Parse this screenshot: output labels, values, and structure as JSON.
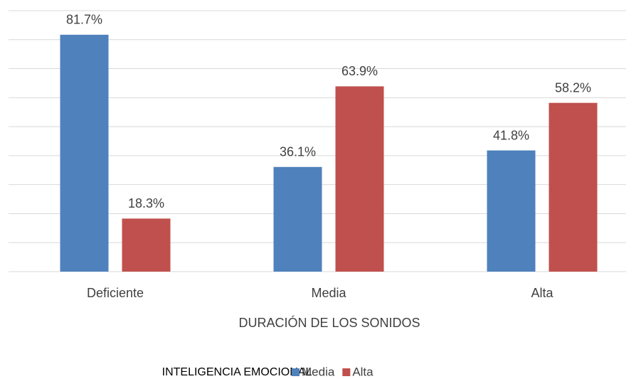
{
  "chart_data": {
    "type": "bar",
    "x_label": "DURACIÓN DE LOS SONIDOS",
    "legend_title": "INTELIGENCIA EMOCIONAL",
    "categories": [
      "Deficiente",
      "Media",
      "Alta"
    ],
    "series": [
      {
        "name": "Media",
        "color": "#4f81bd",
        "values": [
          81.7,
          36.1,
          41.8
        ],
        "value_labels": [
          "81.7%",
          "36.1%",
          "41.8%"
        ]
      },
      {
        "name": "Alta",
        "color": "#c0504d",
        "values": [
          18.3,
          63.9,
          58.2
        ],
        "value_labels": [
          "18.3%",
          "63.9%",
          "58.2%"
        ]
      }
    ],
    "ylim": [
      0,
      90
    ],
    "yticks": [
      0,
      10,
      20,
      30,
      40,
      50,
      60,
      70,
      80,
      90
    ],
    "grid": true,
    "legend": "bottom"
  }
}
